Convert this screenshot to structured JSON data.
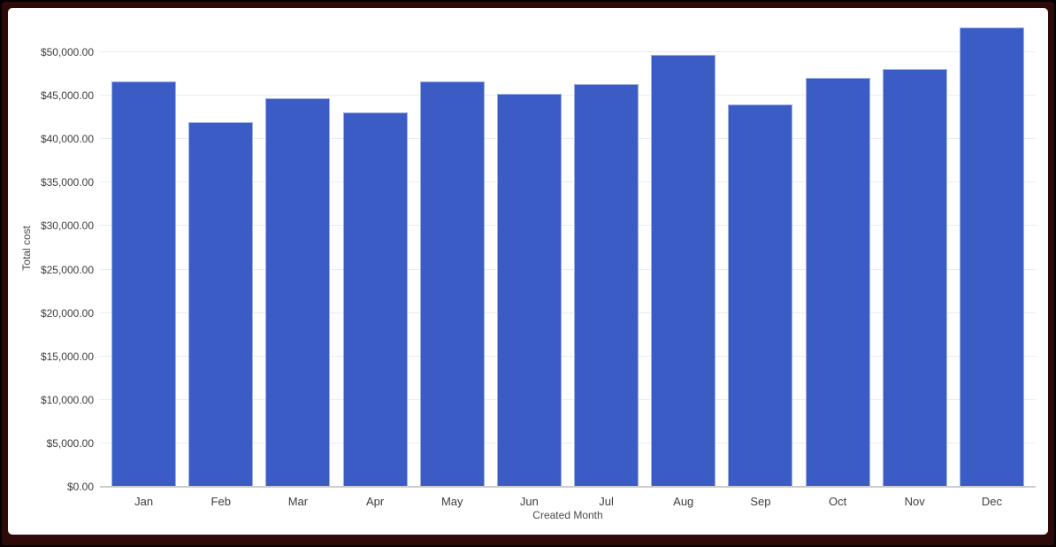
{
  "chart_data": {
    "type": "bar",
    "categories": [
      "Jan",
      "Feb",
      "Mar",
      "Apr",
      "May",
      "Jun",
      "Jul",
      "Aug",
      "Sep",
      "Oct",
      "Nov",
      "Dec"
    ],
    "values": [
      46600,
      42000,
      44700,
      43100,
      46700,
      45200,
      46300,
      49700,
      44000,
      47100,
      48100,
      52900
    ],
    "xlabel": "Created Month",
    "ylabel": "Total cost",
    "ylim": [
      0,
      55000
    ],
    "ytick_step": 5000,
    "ytick_labels": [
      "$0.00",
      "$5,000.00",
      "$10,000.00",
      "$15,000.00",
      "$20,000.00",
      "$25,000.00",
      "$30,000.00",
      "$35,000.00",
      "$40,000.00",
      "$45,000.00",
      "$50,000.00"
    ],
    "grid": true,
    "legend": "none",
    "title": ""
  },
  "colors": {
    "bar": "#3a5cc4",
    "bar_edge": "#9db0e4",
    "gridline": "#ececec",
    "baseline": "#cccccc",
    "tick_text": "#3d3d3d",
    "axis_title_text": "#4a4a4a",
    "frame_outer": "#000000",
    "frame_border": "#2e0b08",
    "canvas_bg": "#ffffff"
  }
}
